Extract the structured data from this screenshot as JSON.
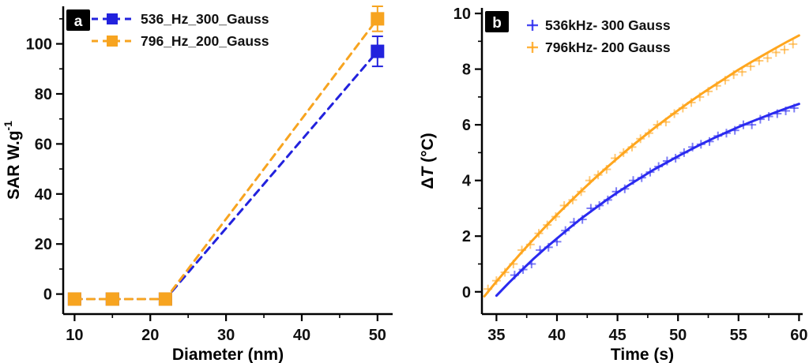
{
  "figure": {
    "description": "Two-panel scientific figure: SAR vs nanoparticle diameter (a) and heating curves ΔT vs time (b)"
  },
  "chart_data": [
    {
      "id": "a",
      "panel_label": "a",
      "type": "line",
      "title": "",
      "xlabel": "Diameter (nm)",
      "ylabel": "SAR W.g⁻¹",
      "ylabel_parts": [
        {
          "text": "SAR W.g"
        },
        {
          "text": "-1",
          "sup": true
        }
      ],
      "xlim": [
        8.5,
        52
      ],
      "ylim": [
        -8,
        115
      ],
      "xticks": [
        10,
        20,
        30,
        40,
        50
      ],
      "xminor": [
        15,
        25,
        35,
        45
      ],
      "yticks": [
        0,
        20,
        40,
        60,
        80,
        100
      ],
      "yminor": [
        10,
        30,
        50,
        70,
        90,
        110
      ],
      "grid": false,
      "legend_position": "top-left",
      "series": [
        {
          "name": "536_Hz_300_Gauss",
          "color": "#2222dd",
          "marker": "square",
          "line": "dashed",
          "x": [
            10,
            15,
            22,
            50
          ],
          "y": [
            -2,
            -2,
            -2,
            97
          ],
          "yerr": [
            0,
            0,
            0,
            6
          ]
        },
        {
          "name": "796_Hz_200_Gauss",
          "color": "#f7a420",
          "marker": "square",
          "line": "dashed",
          "x": [
            10,
            15,
            22,
            50
          ],
          "y": [
            -2,
            -2,
            -2,
            110
          ],
          "yerr": [
            0,
            0,
            0,
            5
          ]
        }
      ]
    },
    {
      "id": "b",
      "panel_label": "b",
      "type": "scatter",
      "title": "",
      "xlabel": "Time (s)",
      "ylabel": "ΔT (°C)",
      "ylabel_parts": [
        {
          "text": "Δ"
        },
        {
          "text": "T",
          "italic": true
        },
        {
          "text": " (°C)"
        }
      ],
      "xlim": [
        33.8,
        60.3
      ],
      "ylim": [
        -0.8,
        10.2
      ],
      "xticks": [
        35,
        40,
        45,
        50,
        55,
        60
      ],
      "xminor": [
        37.5,
        42.5,
        47.5,
        52.5,
        57.5
      ],
      "yticks": [
        0,
        2,
        4,
        6,
        8,
        10
      ],
      "yminor": [
        1,
        3,
        5,
        7,
        9
      ],
      "grid": false,
      "legend_position": "top-left",
      "series": [
        {
          "name": "536kHz- 300 Gauss",
          "color": "#2a2af0",
          "marker": "plus",
          "line": "solid",
          "x": [
            36.5,
            37.2,
            37.9,
            38.6,
            39.3,
            40.0,
            40.7,
            41.4,
            42.1,
            42.8,
            43.5,
            44.2,
            44.9,
            45.6,
            46.3,
            47.0,
            47.7,
            48.4,
            49.1,
            49.8,
            50.5,
            51.2,
            51.9,
            52.6,
            53.3,
            54.0,
            54.7,
            55.4,
            56.1,
            56.8,
            57.5,
            58.2,
            58.9,
            59.6
          ],
          "y": [
            0.6,
            0.8,
            1.0,
            1.5,
            1.6,
            1.8,
            2.2,
            2.5,
            2.6,
            3.0,
            3.1,
            3.3,
            3.6,
            3.7,
            4.0,
            4.1,
            4.3,
            4.5,
            4.7,
            4.8,
            5.0,
            5.2,
            5.3,
            5.4,
            5.6,
            5.7,
            5.8,
            6.0,
            6.0,
            6.2,
            6.3,
            6.4,
            6.5,
            6.6
          ],
          "fit_x": [
            35,
            36,
            37,
            38,
            39,
            40,
            41,
            42,
            43,
            44,
            45,
            46,
            47,
            48,
            49,
            50,
            51,
            52,
            53,
            54,
            55,
            56,
            57,
            58,
            59,
            60
          ],
          "fit_y": [
            -0.14,
            0.31,
            0.74,
            1.16,
            1.55,
            1.92,
            2.28,
            2.63,
            2.95,
            3.27,
            3.57,
            3.85,
            4.12,
            4.39,
            4.63,
            4.87,
            5.1,
            5.32,
            5.53,
            5.73,
            5.92,
            6.1,
            6.27,
            6.44,
            6.6,
            6.75
          ]
        },
        {
          "name": "796kHz- 200 Gauss",
          "color": "#ffa61e",
          "marker": "plus",
          "line": "solid",
          "x": [
            34.3,
            35.0,
            35.7,
            36.4,
            37.1,
            37.8,
            38.5,
            39.2,
            39.9,
            40.6,
            41.3,
            42.0,
            42.7,
            43.4,
            44.1,
            44.8,
            45.5,
            46.2,
            46.9,
            47.6,
            48.3,
            49.0,
            49.7,
            50.4,
            51.1,
            51.8,
            52.5,
            53.2,
            53.9,
            54.6,
            55.3,
            56.0,
            56.7,
            57.4,
            58.1,
            58.8,
            59.5
          ],
          "y": [
            0.1,
            0.4,
            0.7,
            1.0,
            1.5,
            1.7,
            2.1,
            2.4,
            2.7,
            3.1,
            3.3,
            3.6,
            4.0,
            4.2,
            4.4,
            4.8,
            5.0,
            5.2,
            5.5,
            5.7,
            6.0,
            6.1,
            6.4,
            6.6,
            6.8,
            7.0,
            7.2,
            7.4,
            7.6,
            7.8,
            7.9,
            8.1,
            8.3,
            8.4,
            8.6,
            8.7,
            8.9
          ],
          "fit_x": [
            34,
            35,
            36,
            37,
            38,
            39,
            40,
            41,
            42,
            43,
            44,
            45,
            46,
            47,
            48,
            49,
            50,
            51,
            52,
            53,
            54,
            55,
            56,
            57,
            58,
            59,
            60
          ],
          "fit_y": [
            -0.16,
            0.37,
            0.88,
            1.38,
            1.86,
            2.32,
            2.77,
            3.2,
            3.62,
            4.03,
            4.42,
            4.8,
            5.17,
            5.52,
            5.87,
            6.2,
            6.52,
            6.83,
            7.13,
            7.42,
            7.7,
            7.98,
            8.24,
            8.49,
            8.74,
            8.98,
            9.21
          ]
        }
      ]
    }
  ]
}
